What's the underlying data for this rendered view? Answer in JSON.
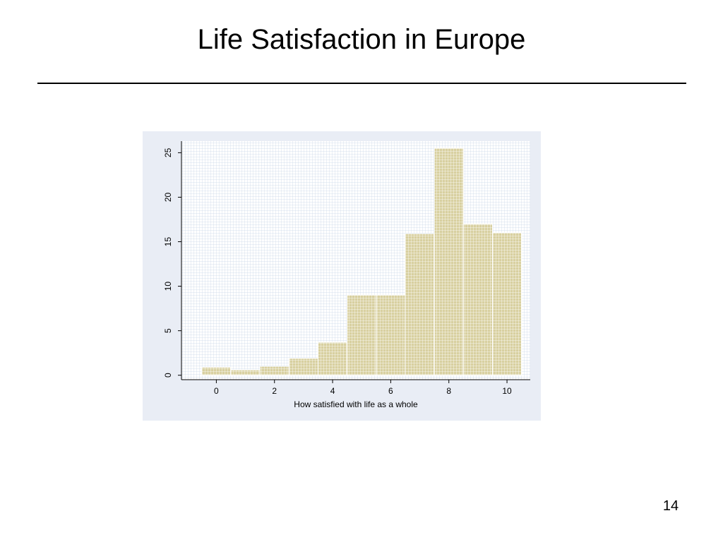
{
  "slide": {
    "title": "Life Satisfaction in Europe",
    "page_number": "14"
  },
  "colors": {
    "panel_background": "#e9edf5",
    "plot_background": "#ffffff",
    "grid": "#c9d6e8",
    "bar_fill": "#d8d0a0",
    "bar_grid": "#ffffff"
  },
  "chart_data": {
    "type": "bar",
    "categories": [
      "0",
      "1",
      "2",
      "3",
      "4",
      "5",
      "6",
      "7",
      "8",
      "9",
      "10"
    ],
    "x": [
      0,
      1,
      2,
      3,
      4,
      5,
      6,
      7,
      8,
      9,
      10
    ],
    "values": [
      0.9,
      0.6,
      1.0,
      1.9,
      3.7,
      9.0,
      9.0,
      15.9,
      25.5,
      17.0,
      16.0
    ],
    "title": "",
    "xlabel": "How satisfied with life as a whole",
    "ylabel": "",
    "xticks": [
      "0",
      "2",
      "4",
      "6",
      "8",
      "10"
    ],
    "yticks": [
      "0",
      "5",
      "10",
      "15",
      "20",
      "25"
    ],
    "xlim": [
      -1.2,
      10.8
    ],
    "ylim": [
      -0.5,
      26.3
    ],
    "grid": true,
    "legend": "none"
  }
}
